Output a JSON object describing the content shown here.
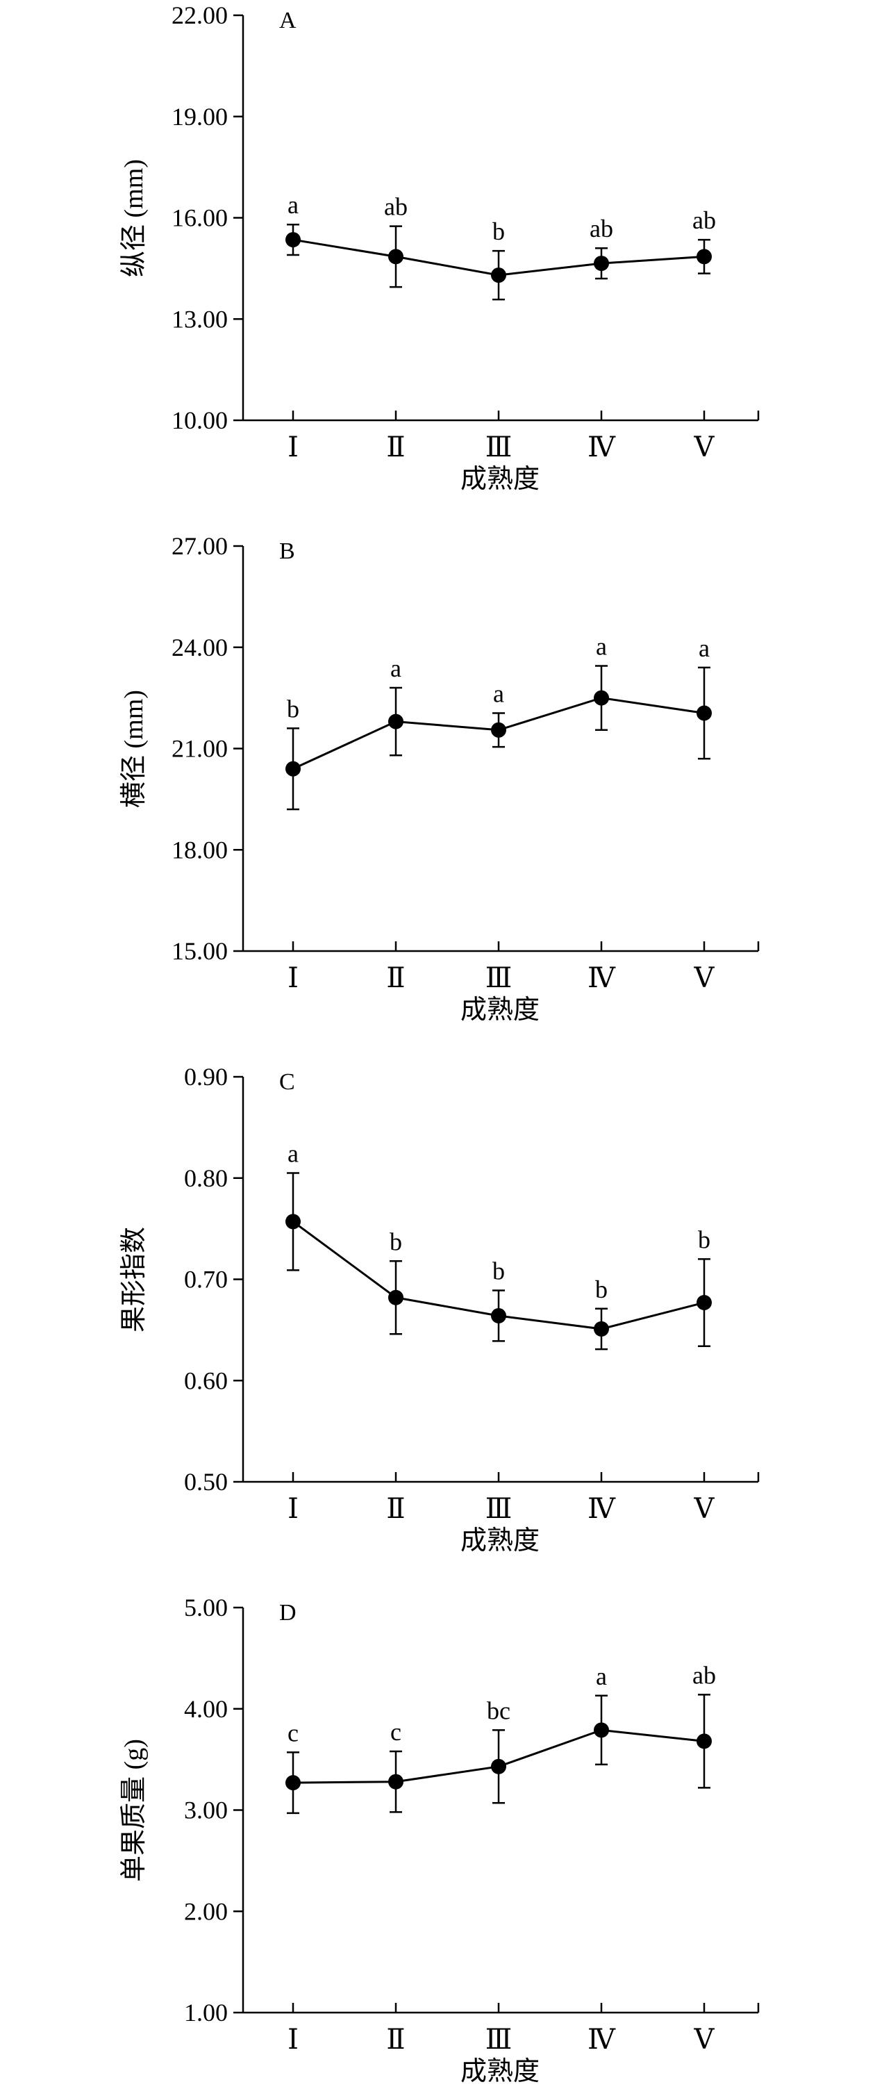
{
  "chart_data": [
    {
      "id": "A",
      "type": "line",
      "panel_label": "A",
      "ylabel": "纵径 (mm)",
      "xlabel": "成熟度",
      "categories": [
        "Ⅰ",
        "Ⅱ",
        "Ⅲ",
        "Ⅳ",
        "Ⅴ"
      ],
      "yticks": [
        "10.00",
        "13.00",
        "16.00",
        "19.00",
        "22.00"
      ],
      "ylim": [
        10,
        22
      ],
      "values": [
        15.35,
        14.85,
        14.3,
        14.65,
        14.85
      ],
      "errors": [
        0.45,
        0.9,
        0.72,
        0.45,
        0.5
      ],
      "letters": [
        "a",
        "ab",
        "b",
        "ab",
        "ab"
      ]
    },
    {
      "id": "B",
      "type": "line",
      "panel_label": "B",
      "ylabel": "横径 (mm)",
      "xlabel": "成熟度",
      "categories": [
        "Ⅰ",
        "Ⅱ",
        "Ⅲ",
        "Ⅳ",
        "Ⅴ"
      ],
      "yticks": [
        "15.00",
        "18.00",
        "21.00",
        "24.00",
        "27.00"
      ],
      "ylim": [
        15,
        27
      ],
      "values": [
        20.4,
        21.8,
        21.55,
        22.5,
        22.05
      ],
      "errors": [
        1.2,
        1.0,
        0.5,
        0.95,
        1.35
      ],
      "letters": [
        "b",
        "a",
        "a",
        "a",
        "a"
      ]
    },
    {
      "id": "C",
      "type": "line",
      "panel_label": "C",
      "ylabel": "果形指数",
      "xlabel": "成熟度",
      "categories": [
        "Ⅰ",
        "Ⅱ",
        "Ⅲ",
        "Ⅳ",
        "Ⅴ"
      ],
      "yticks": [
        "0.50",
        "0.60",
        "0.70",
        "0.80",
        "0.90"
      ],
      "ylim": [
        0.5,
        0.9
      ],
      "values": [
        0.757,
        0.682,
        0.664,
        0.651,
        0.677
      ],
      "errors": [
        0.048,
        0.036,
        0.025,
        0.02,
        0.043
      ],
      "letters": [
        "a",
        "b",
        "b",
        "b",
        "b"
      ]
    },
    {
      "id": "D",
      "type": "line",
      "panel_label": "D",
      "ylabel": "单果质量 (g)",
      "xlabel": "成熟度",
      "categories": [
        "Ⅰ",
        "Ⅱ",
        "Ⅲ",
        "Ⅳ",
        "Ⅴ"
      ],
      "yticks": [
        "1.00",
        "2.00",
        "3.00",
        "4.00",
        "5.00"
      ],
      "ylim": [
        1,
        5
      ],
      "values": [
        3.27,
        3.28,
        3.43,
        3.79,
        3.68
      ],
      "errors": [
        0.3,
        0.3,
        0.36,
        0.34,
        0.46
      ],
      "letters": [
        "c",
        "c",
        "bc",
        "a",
        "ab"
      ]
    }
  ]
}
